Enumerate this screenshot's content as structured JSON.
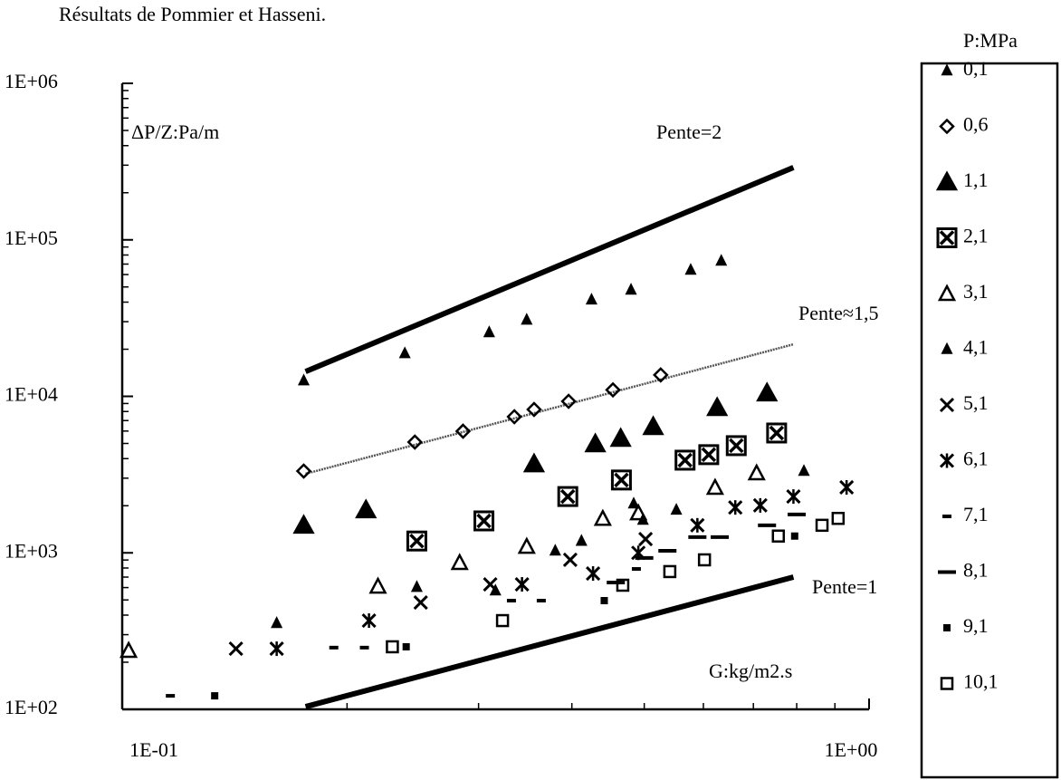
{
  "chart_data": {
    "type": "scatter",
    "title": "Résultats de Pommier et Hasseni.",
    "y_label": "ΔP/Z:Pa/m",
    "x_label": "G:kg/m2.s",
    "legend_title": "P:MPa",
    "legend": "right",
    "log_x": true,
    "log_y": true,
    "xlim": [
      0.1,
      1
    ],
    "ylim": [
      100,
      1000000
    ],
    "xticks": [
      {
        "value": 0.1,
        "label": "1E-01"
      },
      {
        "value": 1,
        "label": "1E+00"
      }
    ],
    "yticks": [
      {
        "value": 100,
        "label": "1E+02"
      },
      {
        "value": 1000,
        "label": "1E+03"
      },
      {
        "value": 10000,
        "label": "1E+04"
      },
      {
        "value": 100000,
        "label": "1E+05"
      },
      {
        "value": 1000000,
        "label": "1E+06"
      }
    ],
    "x_minor_ticks": [
      0.2,
      0.3,
      0.4,
      0.5,
      0.6,
      0.7,
      0.8,
      0.9
    ],
    "y_minor_ticks": [
      200,
      300,
      400,
      500,
      600,
      700,
      800,
      900,
      2000,
      3000,
      4000,
      5000,
      6000,
      7000,
      8000,
      9000,
      20000,
      30000,
      40000,
      50000,
      60000,
      70000,
      80000,
      90000,
      200000,
      300000,
      400000,
      500000,
      600000,
      700000,
      800000,
      900000
    ],
    "reference_lines": [
      {
        "label": "Pente=2",
        "style": "thick",
        "x": [
          0.176,
          0.792
        ],
        "y": [
          14400,
          290000
        ]
      },
      {
        "label": "Pente≈1,5",
        "style": "thin",
        "x": [
          0.176,
          0.792
        ],
        "y": [
          3200,
          21500
        ]
      },
      {
        "label": "Pente=1",
        "style": "thick",
        "x": [
          0.176,
          0.792
        ],
        "y": [
          104,
          700
        ]
      }
    ],
    "series": [
      {
        "name": "0,1",
        "marker": "triangle-small",
        "color": "#000000",
        "x": [
          0.175,
          0.239,
          0.31,
          0.348,
          0.425,
          0.48,
          0.577,
          0.634
        ],
        "values": [
          12600,
          18800,
          25600,
          30800,
          41400,
          47900,
          64200,
          73300
        ]
      },
      {
        "name": "0,6",
        "marker": "diamond",
        "color": "#000000",
        "x": [
          0.175,
          0.2465,
          0.286,
          0.335,
          0.356,
          0.396,
          0.454,
          0.526
        ],
        "values": [
          3330,
          5100,
          5990,
          7410,
          8240,
          9290,
          11000,
          13700
        ]
      },
      {
        "name": "1,1",
        "marker": "triangle-filled",
        "color": "#000000",
        "x": [
          0.175,
          0.212,
          0.356,
          0.43,
          0.465,
          0.514,
          0.626,
          0.73
        ],
        "values": [
          1500,
          1880,
          3700,
          4970,
          5380,
          6400,
          8470,
          10500
        ]
      },
      {
        "name": "2,1",
        "marker": "boxed-x",
        "color": "#000000",
        "x": [
          0.248,
          0.305,
          0.395,
          0.466,
          0.567,
          0.61,
          0.664,
          0.752
        ],
        "values": [
          1190,
          1600,
          2290,
          2920,
          3910,
          4240,
          4840,
          5830
        ]
      },
      {
        "name": "3,1",
        "marker": "triangle-open",
        "color": "#000000",
        "x": [
          0.102,
          0.22,
          0.283,
          0.348,
          0.44,
          0.491,
          0.622,
          0.707
        ],
        "values": [
          238,
          612,
          867,
          1100,
          1660,
          1800,
          2620,
          3240
        ]
      },
      {
        "name": "4,1",
        "marker": "triangle-small",
        "color": "#000000",
        "x": [
          0.161,
          0.248,
          0.316,
          0.38,
          0.412,
          0.484,
          0.498,
          0.552,
          0.818
        ],
        "values": [
          355,
          604,
          573,
          1030,
          1190,
          2060,
          1620,
          1880,
          3330
        ]
      },
      {
        "name": "5,1",
        "marker": "x",
        "color": "#000000",
        "x": [
          0.142,
          0.251,
          0.311,
          0.398,
          0.502
        ],
        "values": [
          244,
          482,
          629,
          902,
          1225
        ]
      },
      {
        "name": "6,1",
        "marker": "asterisk",
        "color": "#000000",
        "x": [
          0.161,
          0.214,
          0.343,
          0.427,
          0.491,
          0.589,
          0.662,
          0.715,
          0.792,
          0.933
        ],
        "values": [
          244,
          369,
          629,
          738,
          1000,
          1500,
          1950,
          2010,
          2290,
          2620
        ]
      },
      {
        "name": "7,1",
        "marker": "dash-small",
        "color": "#000000",
        "x": [
          0.116,
          0.192,
          0.211,
          0.332,
          0.364,
          0.488
        ],
        "values": [
          122,
          248,
          248,
          495,
          495,
          789
        ]
      },
      {
        "name": "8,1",
        "marker": "dash",
        "color": "#000000",
        "x": [
          0.458,
          0.5,
          0.537,
          0.589,
          0.631,
          0.73,
          0.8
        ],
        "values": [
          646,
          927,
          1030,
          1260,
          1260,
          1500,
          1760
        ]
      },
      {
        "name": "9,1",
        "marker": "square-small",
        "color": "#000000",
        "x": [
          0.133,
          0.24,
          0.442,
          0.795
        ],
        "values": [
          122,
          251,
          495,
          1280
        ]
      },
      {
        "name": "10,1",
        "marker": "square-open",
        "color": "#000000",
        "x": [
          0.23,
          0.323,
          0.468,
          0.541,
          0.602,
          0.756,
          0.865,
          0.909
        ],
        "values": [
          251,
          369,
          621,
          759,
          902,
          1280,
          1500,
          1660
        ]
      }
    ]
  }
}
